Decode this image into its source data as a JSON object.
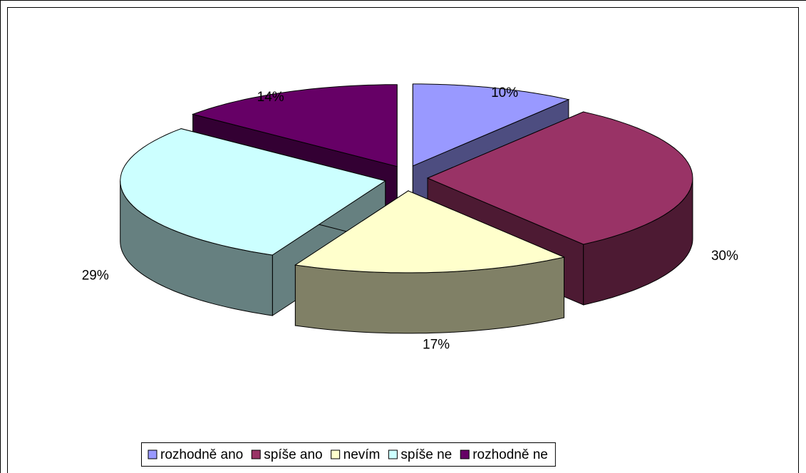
{
  "chart_data": {
    "type": "pie",
    "categories": [
      "rozhodně ano",
      "spíše ano",
      "nevím",
      "spíše ne",
      "rozhodně ne"
    ],
    "values": [
      10,
      30,
      17,
      29,
      14
    ],
    "value_labels": [
      "10%",
      "30%",
      "17%",
      "29%",
      "14%"
    ],
    "colors": [
      "#9999ff",
      "#993366",
      "#ffffcc",
      "#ccffff",
      "#660066"
    ],
    "three_d": true,
    "exploded": true,
    "legend": "bottom"
  }
}
